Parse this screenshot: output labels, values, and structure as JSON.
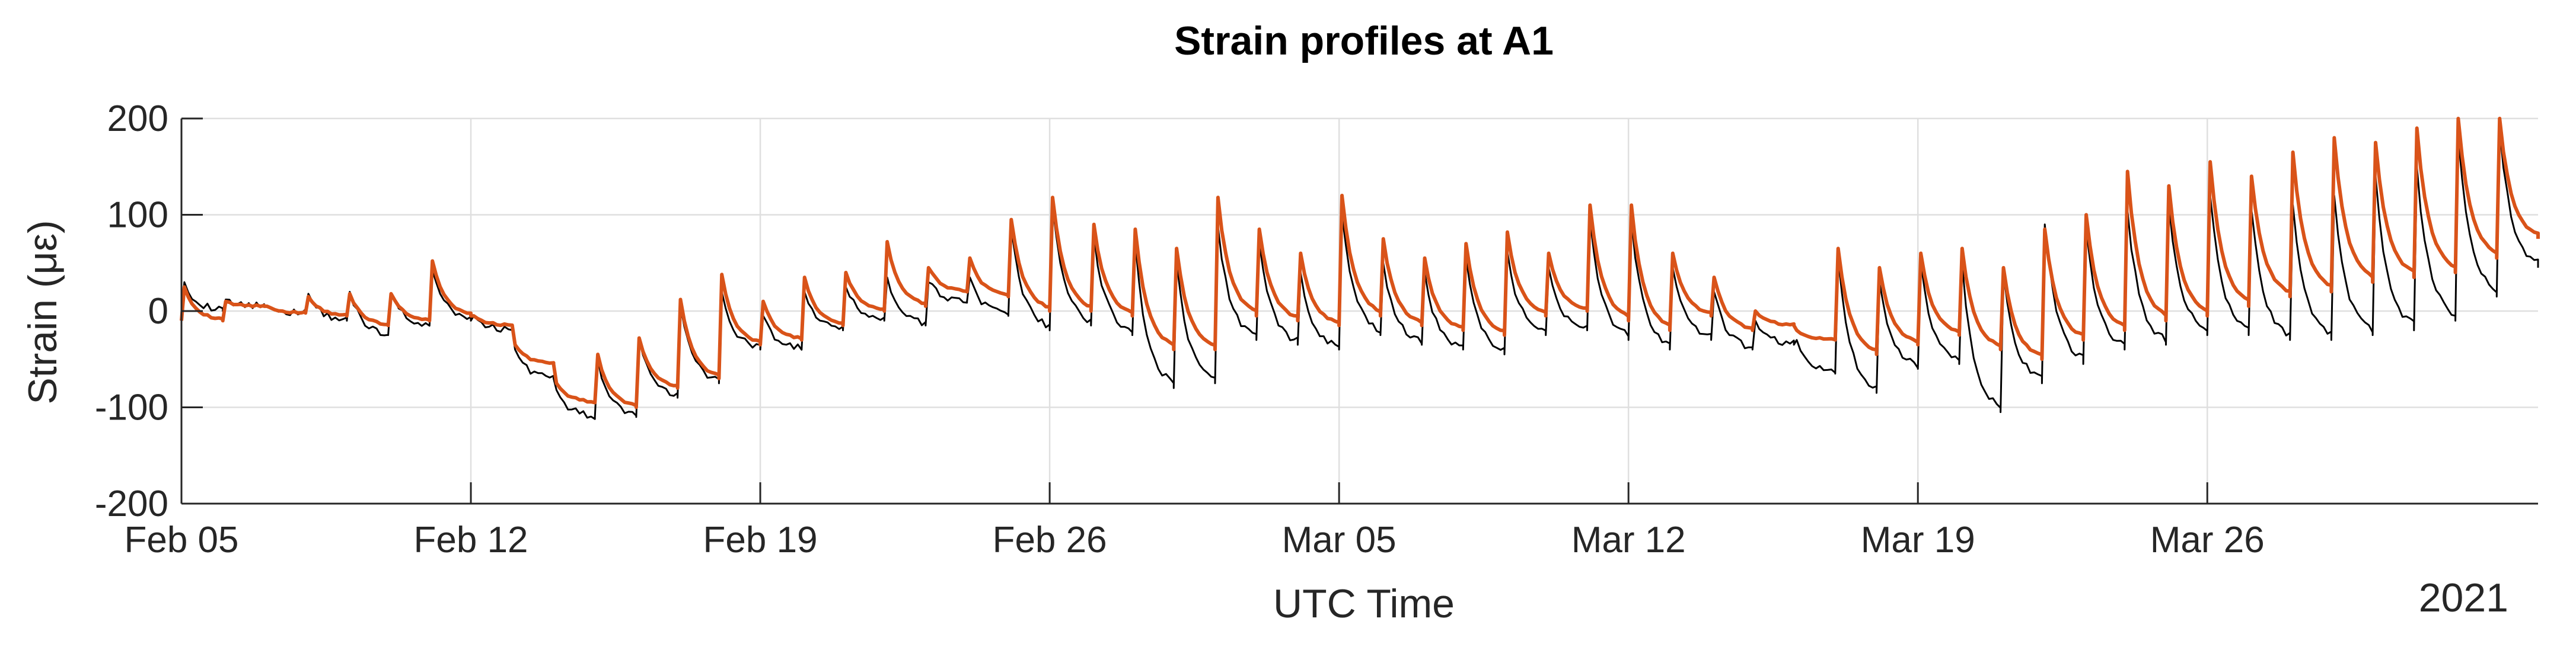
{
  "chart_data": {
    "type": "line",
    "title": "Strain profiles at A1",
    "xlabel": "UTC Time",
    "ylabel": "Strain (με)",
    "year_label": "2021",
    "x_range": [
      "2021-02-05",
      "2021-04-03"
    ],
    "ylim": [
      -200,
      200
    ],
    "y_ticks": [
      -200,
      -100,
      0,
      100,
      200
    ],
    "x_ticks": [
      {
        "date": "2021-02-05",
        "label": "Feb 05"
      },
      {
        "date": "2021-02-12",
        "label": "Feb 12"
      },
      {
        "date": "2021-02-19",
        "label": "Feb 19"
      },
      {
        "date": "2021-02-26",
        "label": "Feb 26"
      },
      {
        "date": "2021-03-05",
        "label": "Mar 05"
      },
      {
        "date": "2021-03-12",
        "label": "Mar 12"
      },
      {
        "date": "2021-03-19",
        "label": "Mar 19"
      },
      {
        "date": "2021-03-26",
        "label": "Mar 26"
      }
    ],
    "grid": true,
    "series": [
      {
        "color": "#000000",
        "x": [
          "2021-02-05",
          "2021-02-06",
          "2021-02-07",
          "2021-02-08",
          "2021-02-09",
          "2021-02-10",
          "2021-02-11",
          "2021-02-12",
          "2021-02-13",
          "2021-02-14",
          "2021-02-15",
          "2021-02-16",
          "2021-02-17",
          "2021-02-18",
          "2021-02-19",
          "2021-02-20",
          "2021-02-21",
          "2021-02-22",
          "2021-02-23",
          "2021-02-24",
          "2021-02-25",
          "2021-02-26",
          "2021-02-27",
          "2021-02-28",
          "2021-03-01",
          "2021-03-02",
          "2021-03-03",
          "2021-03-04",
          "2021-03-05",
          "2021-03-06",
          "2021-03-07",
          "2021-03-08",
          "2021-03-09",
          "2021-03-10",
          "2021-03-11",
          "2021-03-12",
          "2021-03-13",
          "2021-03-14",
          "2021-03-15",
          "2021-03-16",
          "2021-03-17",
          "2021-03-18",
          "2021-03-19",
          "2021-03-20",
          "2021-03-21",
          "2021-03-22",
          "2021-03-23",
          "2021-03-24",
          "2021-03-25",
          "2021-03-26",
          "2021-03-27",
          "2021-03-28",
          "2021-03-29",
          "2021-03-30",
          "2021-03-31",
          "2021-04-01",
          "2021-04-02",
          "2021-04-03"
        ],
        "peaks": [
          30,
          12,
          5,
          18,
          20,
          18,
          42,
          -5,
          -40,
          -82,
          -50,
          -30,
          5,
          20,
          -5,
          20,
          25,
          35,
          30,
          35,
          85,
          108,
          78,
          70,
          50,
          88,
          70,
          40,
          100,
          50,
          40,
          55,
          62,
          45,
          95,
          95,
          45,
          20,
          -10,
          -30,
          55,
          30,
          50,
          50,
          40,
          90,
          85,
          105,
          110,
          120,
          105,
          110,
          120,
          140,
          150,
          180,
          190,
          170
        ],
        "troughs": [
          0,
          5,
          -2,
          -10,
          -25,
          -15,
          -10,
          -20,
          -70,
          -110,
          -110,
          -90,
          -75,
          -40,
          -40,
          -20,
          -10,
          -15,
          10,
          -5,
          -20,
          -15,
          -25,
          -80,
          -75,
          -30,
          -35,
          -40,
          -25,
          -35,
          -40,
          -45,
          -25,
          -20,
          -30,
          -40,
          -30,
          -40,
          -35,
          -65,
          -85,
          -60,
          -55,
          -105,
          -75,
          -55,
          -40,
          -35,
          -25,
          -25,
          -30,
          -30,
          -25,
          -20,
          -10,
          15,
          45,
          70
        ]
      },
      {
        "color": "#d95319",
        "x": [
          "2021-02-05",
          "2021-02-06",
          "2021-02-07",
          "2021-02-08",
          "2021-02-09",
          "2021-02-10",
          "2021-02-11",
          "2021-02-12",
          "2021-02-13",
          "2021-02-14",
          "2021-02-15",
          "2021-02-16",
          "2021-02-17",
          "2021-02-18",
          "2021-02-19",
          "2021-02-20",
          "2021-02-21",
          "2021-02-22",
          "2021-02-23",
          "2021-02-24",
          "2021-02-25",
          "2021-02-26",
          "2021-02-27",
          "2021-02-28",
          "2021-03-01",
          "2021-03-02",
          "2021-03-03",
          "2021-03-04",
          "2021-03-05",
          "2021-03-06",
          "2021-03-07",
          "2021-03-08",
          "2021-03-09",
          "2021-03-10",
          "2021-03-11",
          "2021-03-12",
          "2021-03-13",
          "2021-03-14",
          "2021-03-15",
          "2021-03-16",
          "2021-03-17",
          "2021-03-18",
          "2021-03-19",
          "2021-03-20",
          "2021-03-21",
          "2021-03-22",
          "2021-03-23",
          "2021-03-24",
          "2021-03-25",
          "2021-03-26",
          "2021-03-27",
          "2021-03-28",
          "2021-03-29",
          "2021-03-30",
          "2021-03-31",
          "2021-04-01",
          "2021-04-02",
          "2021-04-03"
        ],
        "peaks": [
          25,
          10,
          5,
          15,
          18,
          18,
          52,
          -5,
          -35,
          -75,
          -45,
          -28,
          12,
          38,
          10,
          35,
          40,
          72,
          45,
          55,
          95,
          118,
          90,
          85,
          65,
          118,
          85,
          60,
          120,
          75,
          55,
          70,
          82,
          60,
          110,
          110,
          60,
          35,
          0,
          -20,
          65,
          45,
          60,
          65,
          45,
          85,
          100,
          145,
          130,
          155,
          140,
          165,
          180,
          175,
          190,
          200,
          200,
          185
        ],
        "troughs": [
          -10,
          5,
          -2,
          -5,
          -15,
          -10,
          -5,
          -15,
          -55,
          -95,
          -100,
          -80,
          -70,
          -35,
          -30,
          -15,
          0,
          5,
          20,
          15,
          0,
          0,
          -5,
          -40,
          -40,
          -5,
          -10,
          -15,
          -5,
          -15,
          -20,
          -25,
          -5,
          0,
          -10,
          -20,
          -5,
          -20,
          -15,
          -30,
          -45,
          -35,
          -25,
          -40,
          -50,
          -30,
          -20,
          -10,
          -5,
          5,
          15,
          20,
          30,
          35,
          40,
          55,
          75,
          100
        ]
      }
    ]
  }
}
